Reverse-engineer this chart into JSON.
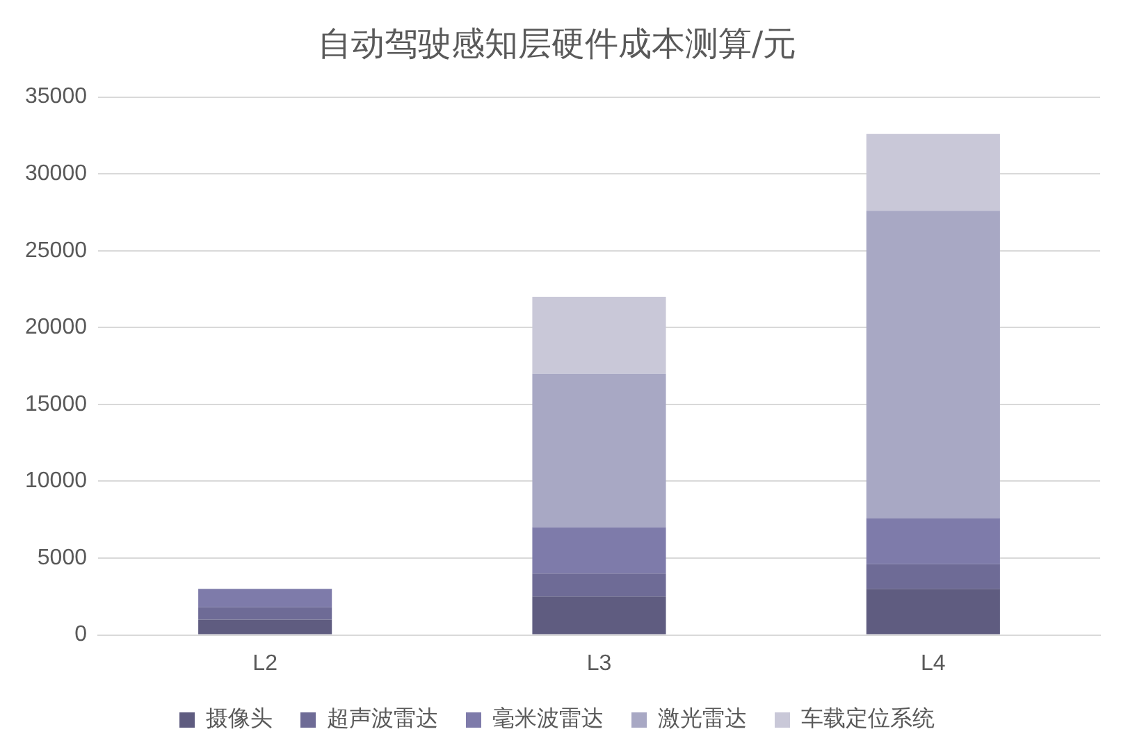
{
  "chart_data": {
    "type": "bar",
    "title": "自动驾驶感知层硬件成本测算/元",
    "categories": [
      "L2",
      "L3",
      "L4"
    ],
    "stacked": true,
    "series": [
      {
        "name": "摄像头",
        "color": "#5f5c80",
        "values": [
          1000,
          2500,
          3000
        ]
      },
      {
        "name": "超声波雷达",
        "color": "#6e6b96",
        "values": [
          800,
          1500,
          1600
        ]
      },
      {
        "name": "毫米波雷达",
        "color": "#7e7baa",
        "values": [
          1200,
          3000,
          3000
        ]
      },
      {
        "name": "激光雷达",
        "color": "#a8a8c4",
        "values": [
          0,
          10000,
          20000
        ]
      },
      {
        "name": "车载定位系统",
        "color": "#c9c8d8",
        "values": [
          0,
          5000,
          5000
        ]
      }
    ],
    "ylim": [
      0,
      35000
    ],
    "yticks": [
      0,
      5000,
      10000,
      15000,
      20000,
      25000,
      30000,
      35000
    ],
    "grid": "y",
    "legend": "bottom"
  }
}
